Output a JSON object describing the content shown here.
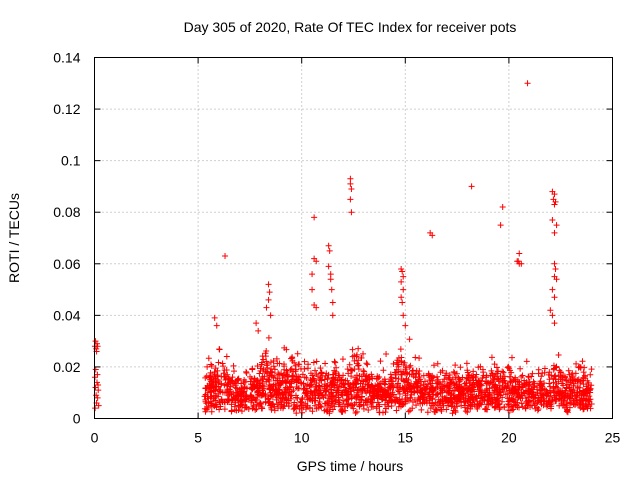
{
  "chart_data": {
    "type": "scatter",
    "title": "Day 305 of 2020, Rate Of TEC Index for receiver pots",
    "xlabel": "GPS time / hours",
    "ylabel": "ROTI / TECUs",
    "xlim": [
      0,
      25
    ],
    "ylim": [
      0,
      0.14
    ],
    "xticks": [
      0,
      5,
      10,
      15,
      20,
      25
    ],
    "xtick_labels": [
      "0",
      "5",
      "10",
      "15",
      "20",
      "25"
    ],
    "yticks": [
      0,
      0.02,
      0.04,
      0.06,
      0.08,
      0.1,
      0.12,
      0.14
    ],
    "ytick_labels": [
      "0",
      "0.02",
      "0.04",
      "0.06",
      "0.08",
      "0.1",
      "0.12",
      "0.14"
    ],
    "grid": true,
    "marker": "+",
    "color": "#ff0000",
    "series": [
      {
        "name": "ROTI",
        "points": [
          [
            0.02,
            0.028
          ],
          [
            0.05,
            0.03
          ],
          [
            0.08,
            0.027
          ],
          [
            0.1,
            0.026
          ],
          [
            0.12,
            0.029
          ],
          [
            0.15,
            0.028
          ],
          [
            0.02,
            0.016
          ],
          [
            0.05,
            0.012
          ],
          [
            0.08,
            0.009
          ],
          [
            0.1,
            0.006
          ],
          [
            0.12,
            0.014
          ],
          [
            0.15,
            0.008
          ],
          [
            0.18,
            0.011
          ],
          [
            0.2,
            0.005
          ],
          [
            0.06,
            0.019
          ],
          [
            0.14,
            0.017
          ],
          [
            0.03,
            0.004
          ],
          [
            0.17,
            0.013
          ],
          [
            6.3,
            0.063
          ],
          [
            10.6,
            0.078
          ],
          [
            10.6,
            0.062
          ],
          [
            10.7,
            0.061
          ],
          [
            10.5,
            0.056
          ],
          [
            10.5,
            0.05
          ],
          [
            10.6,
            0.044
          ],
          [
            10.7,
            0.043
          ],
          [
            11.3,
            0.067
          ],
          [
            11.35,
            0.065
          ],
          [
            11.3,
            0.059
          ],
          [
            11.4,
            0.056
          ],
          [
            11.4,
            0.054
          ],
          [
            11.45,
            0.05
          ],
          [
            11.5,
            0.045
          ],
          [
            11.5,
            0.04
          ],
          [
            12.35,
            0.093
          ],
          [
            12.35,
            0.091
          ],
          [
            12.4,
            0.089
          ],
          [
            12.35,
            0.085
          ],
          [
            12.4,
            0.08
          ],
          [
            14.8,
            0.058
          ],
          [
            14.85,
            0.057
          ],
          [
            14.9,
            0.055
          ],
          [
            14.8,
            0.053
          ],
          [
            14.9,
            0.05
          ],
          [
            14.8,
            0.047
          ],
          [
            14.85,
            0.045
          ],
          [
            14.9,
            0.04
          ],
          [
            15.0,
            0.036
          ],
          [
            16.2,
            0.072
          ],
          [
            16.3,
            0.071
          ],
          [
            18.2,
            0.09
          ],
          [
            19.6,
            0.075
          ],
          [
            19.7,
            0.082
          ],
          [
            20.5,
            0.064
          ],
          [
            20.4,
            0.061
          ],
          [
            20.5,
            0.06
          ],
          [
            20.6,
            0.06
          ],
          [
            20.45,
            0.061
          ],
          [
            20.9,
            0.13
          ],
          [
            22.1,
            0.088
          ],
          [
            22.2,
            0.087
          ],
          [
            22.15,
            0.085
          ],
          [
            22.25,
            0.084
          ],
          [
            22.2,
            0.083
          ],
          [
            22.1,
            0.077
          ],
          [
            22.3,
            0.075
          ],
          [
            22.2,
            0.072
          ],
          [
            22.2,
            0.06
          ],
          [
            22.25,
            0.058
          ],
          [
            22.2,
            0.055
          ],
          [
            22.3,
            0.054
          ],
          [
            22.1,
            0.05
          ],
          [
            22.2,
            0.047
          ],
          [
            22.0,
            0.042
          ],
          [
            22.1,
            0.04
          ],
          [
            22.2,
            0.037
          ],
          [
            5.8,
            0.039
          ],
          [
            5.9,
            0.036
          ],
          [
            8.4,
            0.052
          ],
          [
            8.45,
            0.049
          ],
          [
            8.4,
            0.046
          ],
          [
            8.3,
            0.043
          ],
          [
            8.5,
            0.04
          ],
          [
            7.8,
            0.037
          ],
          [
            7.9,
            0.034
          ]
        ],
        "bulk": {
          "x_range": [
            5.3,
            24.0
          ],
          "y_range": [
            0.002,
            0.026
          ],
          "count": 2200
        }
      }
    ]
  }
}
